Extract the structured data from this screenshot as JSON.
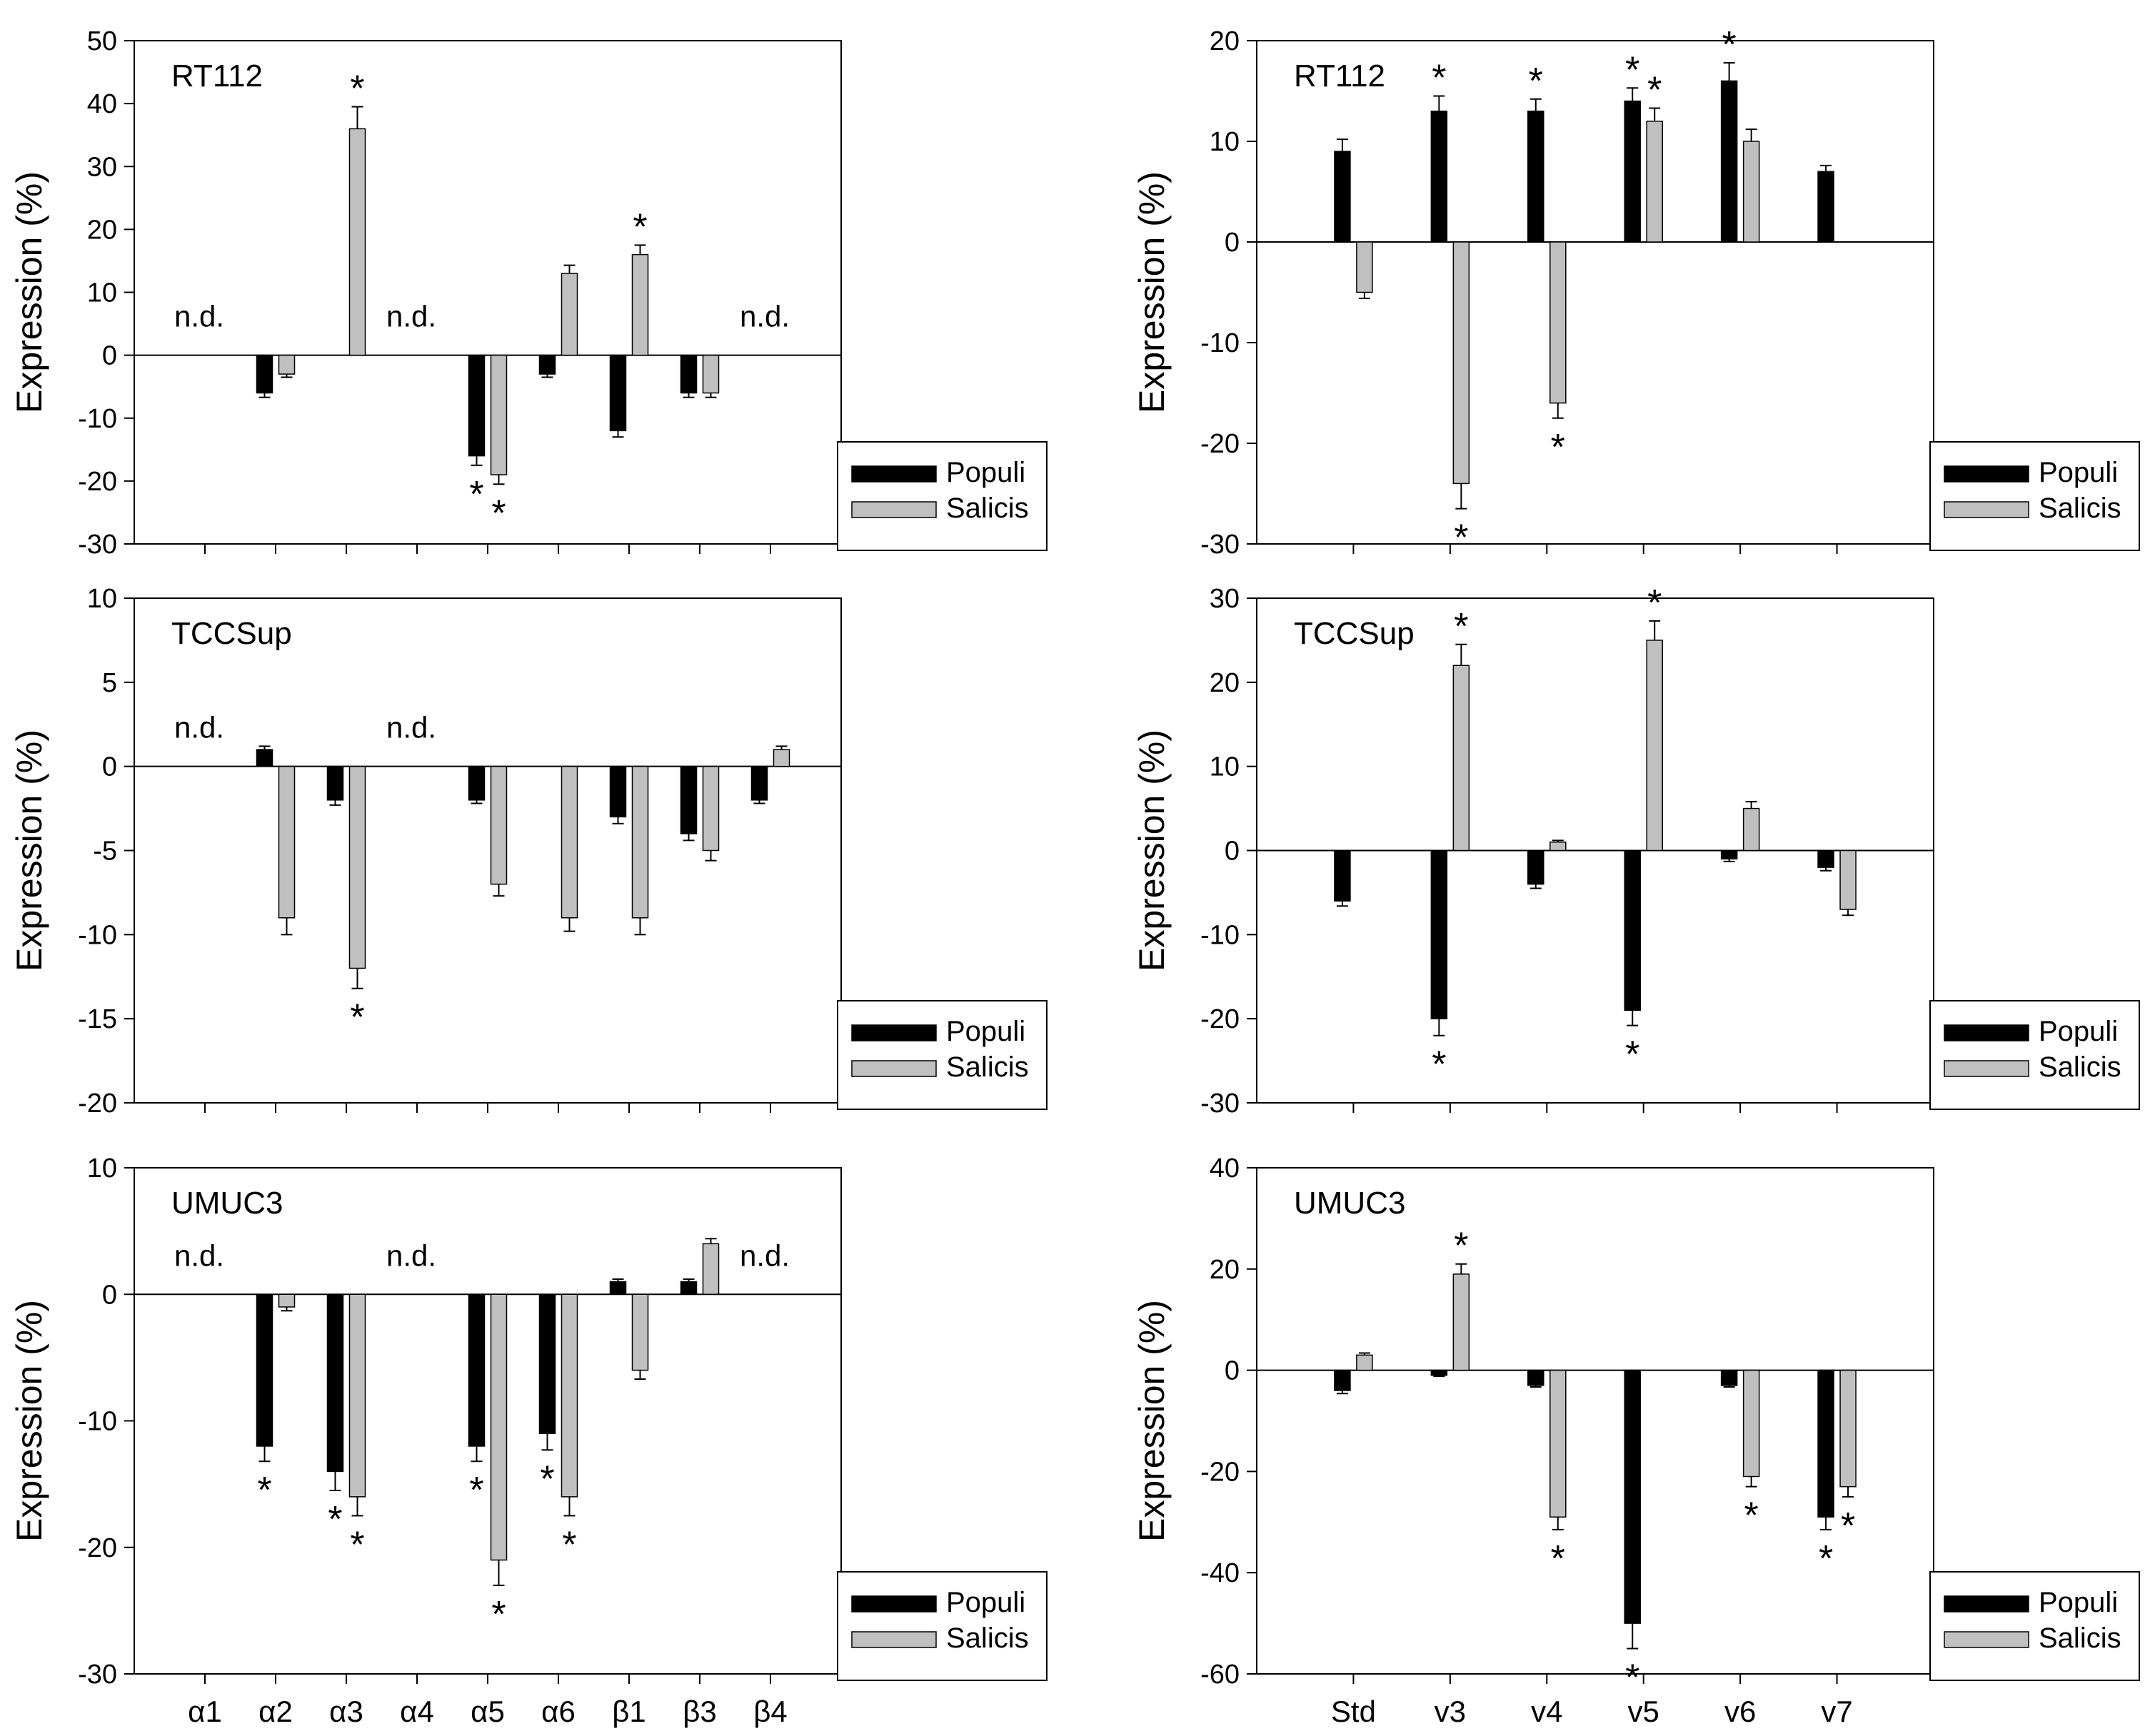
{
  "chart_data": [
    {
      "id": "rt112-integrin-alpha-beta",
      "type": "bar",
      "panel_label": "RT112",
      "ylabel": "Expression (%)",
      "ylim": [
        -30,
        50
      ],
      "yticks": [
        50,
        40,
        30,
        20,
        10,
        0,
        -10,
        -20,
        -30
      ],
      "categories": [
        "α1",
        "α2",
        "α3",
        "α4",
        "α5",
        "α6",
        "β1",
        "β3",
        "β4"
      ],
      "show_category_labels": false,
      "nd_label": "n.d.",
      "nd_categories": [
        "α1",
        "α4",
        "β4"
      ],
      "series": [
        {
          "name": "Populi",
          "color": "#000000",
          "values": [
            null,
            -6,
            null,
            null,
            -16,
            -3,
            -12,
            -6,
            null
          ],
          "errors": [
            0,
            0.7,
            0,
            0,
            1.5,
            0.5,
            1,
            0.7,
            0
          ],
          "significant": [
            false,
            false,
            false,
            false,
            true,
            false,
            false,
            false,
            false
          ]
        },
        {
          "name": "Salicis",
          "color": "#c0c0c0",
          "values": [
            null,
            -3,
            36,
            null,
            -19,
            13,
            16,
            -6,
            null
          ],
          "errors": [
            0,
            0.5,
            3.5,
            0,
            1.5,
            1.3,
            1.5,
            0.7,
            0
          ],
          "significant": [
            false,
            false,
            true,
            false,
            true,
            false,
            true,
            false,
            false
          ]
        }
      ],
      "significance_marker": "*",
      "legend": {
        "position": "bottom-right",
        "entries": [
          "Populi",
          "Salicis"
        ]
      }
    },
    {
      "id": "rt112-cd44-variants",
      "type": "bar",
      "panel_label": "RT112",
      "ylabel": "Expression (%)",
      "ylim": [
        -30,
        20
      ],
      "yticks": [
        20,
        10,
        0,
        -10,
        -20,
        -30
      ],
      "categories": [
        "Std",
        "v3",
        "v4",
        "v5",
        "v6",
        "v7"
      ],
      "show_category_labels": false,
      "nd_label": "",
      "nd_categories": [],
      "series": [
        {
          "name": "Populi",
          "color": "#000000",
          "values": [
            9,
            13,
            13,
            14,
            16,
            7
          ],
          "errors": [
            1.2,
            1.5,
            1.2,
            1.3,
            1.8,
            0.6
          ],
          "significant": [
            false,
            true,
            true,
            true,
            true,
            false
          ]
        },
        {
          "name": "Salicis",
          "color": "#c0c0c0",
          "values": [
            -5,
            -24,
            -16,
            12,
            10,
            null
          ],
          "errors": [
            0.6,
            2.5,
            1.5,
            1.3,
            1.2,
            0
          ],
          "significant": [
            false,
            true,
            true,
            true,
            false,
            false
          ]
        }
      ],
      "significance_marker": "*",
      "legend": {
        "position": "bottom-right",
        "entries": [
          "Populi",
          "Salicis"
        ]
      }
    },
    {
      "id": "tccsup-integrin-alpha-beta",
      "type": "bar",
      "panel_label": "TCCSup",
      "ylabel": "Expression (%)",
      "ylim": [
        -20,
        10
      ],
      "yticks": [
        10,
        5,
        0,
        -5,
        -10,
        -15,
        -20
      ],
      "categories": [
        "α1",
        "α2",
        "α3",
        "α4",
        "α5",
        "α6",
        "β1",
        "β3",
        "β4"
      ],
      "show_category_labels": false,
      "nd_label": "n.d.",
      "nd_categories": [
        "α1",
        "α4"
      ],
      "series": [
        {
          "name": "Populi",
          "color": "#000000",
          "values": [
            null,
            1,
            -2,
            null,
            -2,
            null,
            -3,
            -4,
            -2
          ],
          "errors": [
            0,
            0.2,
            0.3,
            0,
            0.2,
            0,
            0.4,
            0.4,
            0.2
          ],
          "significant": [
            false,
            false,
            false,
            false,
            false,
            false,
            false,
            false,
            false
          ]
        },
        {
          "name": "Salicis",
          "color": "#c0c0c0",
          "values": [
            null,
            -9,
            -12,
            null,
            -7,
            -9,
            -9,
            -5,
            1
          ],
          "errors": [
            0,
            1,
            1.2,
            0,
            0.7,
            0.8,
            1,
            0.6,
            0.2
          ],
          "significant": [
            false,
            false,
            true,
            false,
            false,
            false,
            false,
            false,
            false
          ]
        }
      ],
      "significance_marker": "*",
      "legend": {
        "position": "bottom-right",
        "entries": [
          "Populi",
          "Salicis"
        ]
      }
    },
    {
      "id": "tccsup-cd44-variants",
      "type": "bar",
      "panel_label": "TCCSup",
      "ylabel": "Expression (%)",
      "ylim": [
        -30,
        30
      ],
      "yticks": [
        30,
        20,
        10,
        0,
        -10,
        -20,
        -30
      ],
      "categories": [
        "Std",
        "v3",
        "v4",
        "v5",
        "v6",
        "v7"
      ],
      "show_category_labels": false,
      "nd_label": "",
      "nd_categories": [],
      "series": [
        {
          "name": "Populi",
          "color": "#000000",
          "values": [
            -6,
            -20,
            -4,
            -19,
            -1,
            -2
          ],
          "errors": [
            0.6,
            2,
            0.5,
            1.8,
            0.3,
            0.4
          ],
          "significant": [
            false,
            true,
            false,
            true,
            false,
            false
          ]
        },
        {
          "name": "Salicis",
          "color": "#c0c0c0",
          "values": [
            null,
            22,
            1,
            25,
            5,
            -7
          ],
          "errors": [
            0,
            2.5,
            0.2,
            2.3,
            0.8,
            0.7
          ],
          "significant": [
            false,
            true,
            false,
            true,
            false,
            false
          ]
        }
      ],
      "significance_marker": "*",
      "legend": {
        "position": "bottom-right",
        "entries": [
          "Populi",
          "Salicis"
        ]
      }
    },
    {
      "id": "umuc3-integrin-alpha-beta",
      "type": "bar",
      "panel_label": "UMUC3",
      "ylabel": "Expression (%)",
      "ylim": [
        -30,
        10
      ],
      "yticks": [
        10,
        0,
        -10,
        -20,
        -30
      ],
      "categories": [
        "α1",
        "α2",
        "α3",
        "α4",
        "α5",
        "α6",
        "β1",
        "β3",
        "β4"
      ],
      "show_category_labels": true,
      "nd_label": "n.d.",
      "nd_categories": [
        "α1",
        "α4",
        "β4"
      ],
      "series": [
        {
          "name": "Populi",
          "color": "#000000",
          "values": [
            null,
            -12,
            -14,
            null,
            -12,
            -11,
            1,
            1,
            null
          ],
          "errors": [
            0,
            1.2,
            1.5,
            0,
            1.2,
            1.3,
            0.2,
            0.2,
            0
          ],
          "significant": [
            false,
            true,
            true,
            false,
            true,
            true,
            false,
            false,
            false
          ]
        },
        {
          "name": "Salicis",
          "color": "#c0c0c0",
          "values": [
            null,
            -1,
            -16,
            null,
            -21,
            -16,
            -6,
            4,
            null
          ],
          "errors": [
            0,
            0.3,
            1.5,
            0,
            2,
            1.5,
            0.7,
            0.4,
            0
          ],
          "significant": [
            false,
            false,
            true,
            false,
            true,
            true,
            false,
            false,
            false
          ]
        }
      ],
      "significance_marker": "*",
      "legend": {
        "position": "bottom-right",
        "entries": [
          "Populi",
          "Salicis"
        ]
      }
    },
    {
      "id": "umuc3-cd44-variants",
      "type": "bar",
      "panel_label": "UMUC3",
      "ylabel": "Expression (%)",
      "ylim": [
        -60,
        40
      ],
      "yticks": [
        40,
        20,
        0,
        -20,
        -40,
        -60
      ],
      "categories": [
        "Std",
        "v3",
        "v4",
        "v5",
        "v6",
        "v7"
      ],
      "show_category_labels": true,
      "nd_label": "",
      "nd_categories": [],
      "series": [
        {
          "name": "Populi",
          "color": "#000000",
          "values": [
            -4,
            -1,
            -3,
            -50,
            -3,
            -29
          ],
          "errors": [
            0.6,
            0.2,
            0.3,
            5,
            0.3,
            2.5
          ],
          "significant": [
            false,
            false,
            false,
            true,
            false,
            true
          ]
        },
        {
          "name": "Salicis",
          "color": "#c0c0c0",
          "values": [
            3,
            19,
            -29,
            null,
            -21,
            -23
          ],
          "errors": [
            0.4,
            2,
            2.5,
            0,
            2,
            2
          ],
          "significant": [
            false,
            true,
            true,
            false,
            true,
            true
          ]
        }
      ],
      "significance_marker": "*",
      "legend": {
        "position": "bottom-right",
        "entries": [
          "Populi",
          "Salicis"
        ]
      }
    }
  ]
}
